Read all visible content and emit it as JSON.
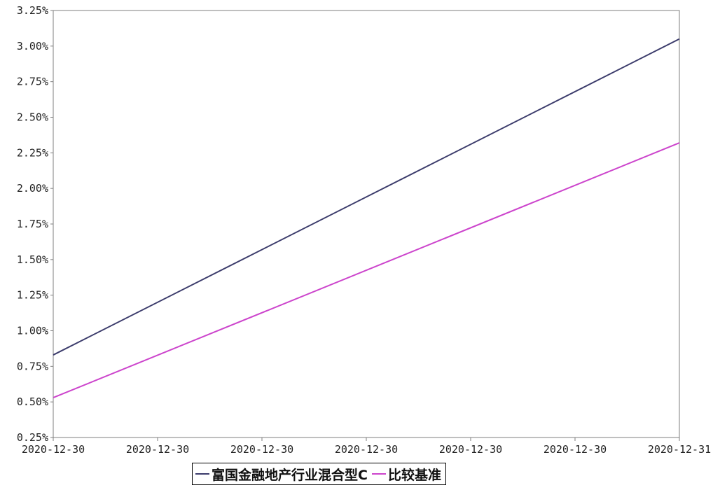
{
  "chart_data": {
    "type": "line",
    "x": [
      "2020-12-30",
      "2020-12-30",
      "2020-12-30",
      "2020-12-30",
      "2020-12-30",
      "2020-12-30",
      "2020-12-31"
    ],
    "ylim": [
      0.25,
      3.25
    ],
    "y_ticks": [
      "0.25%",
      "0.50%",
      "0.75%",
      "1.00%",
      "1.25%",
      "1.50%",
      "1.75%",
      "2.00%",
      "2.25%",
      "2.50%",
      "2.75%",
      "3.00%",
      "3.25%"
    ],
    "y_unit": "%",
    "grid": true,
    "legend_position": "bottom-center",
    "series": [
      {
        "name": "富国金融地产行业混合型C",
        "color": "#3b3b6b",
        "start": 0.83,
        "end": 3.05
      },
      {
        "name": "比较基准",
        "color": "#cc44cc",
        "start": 0.53,
        "end": 2.32
      }
    ]
  }
}
